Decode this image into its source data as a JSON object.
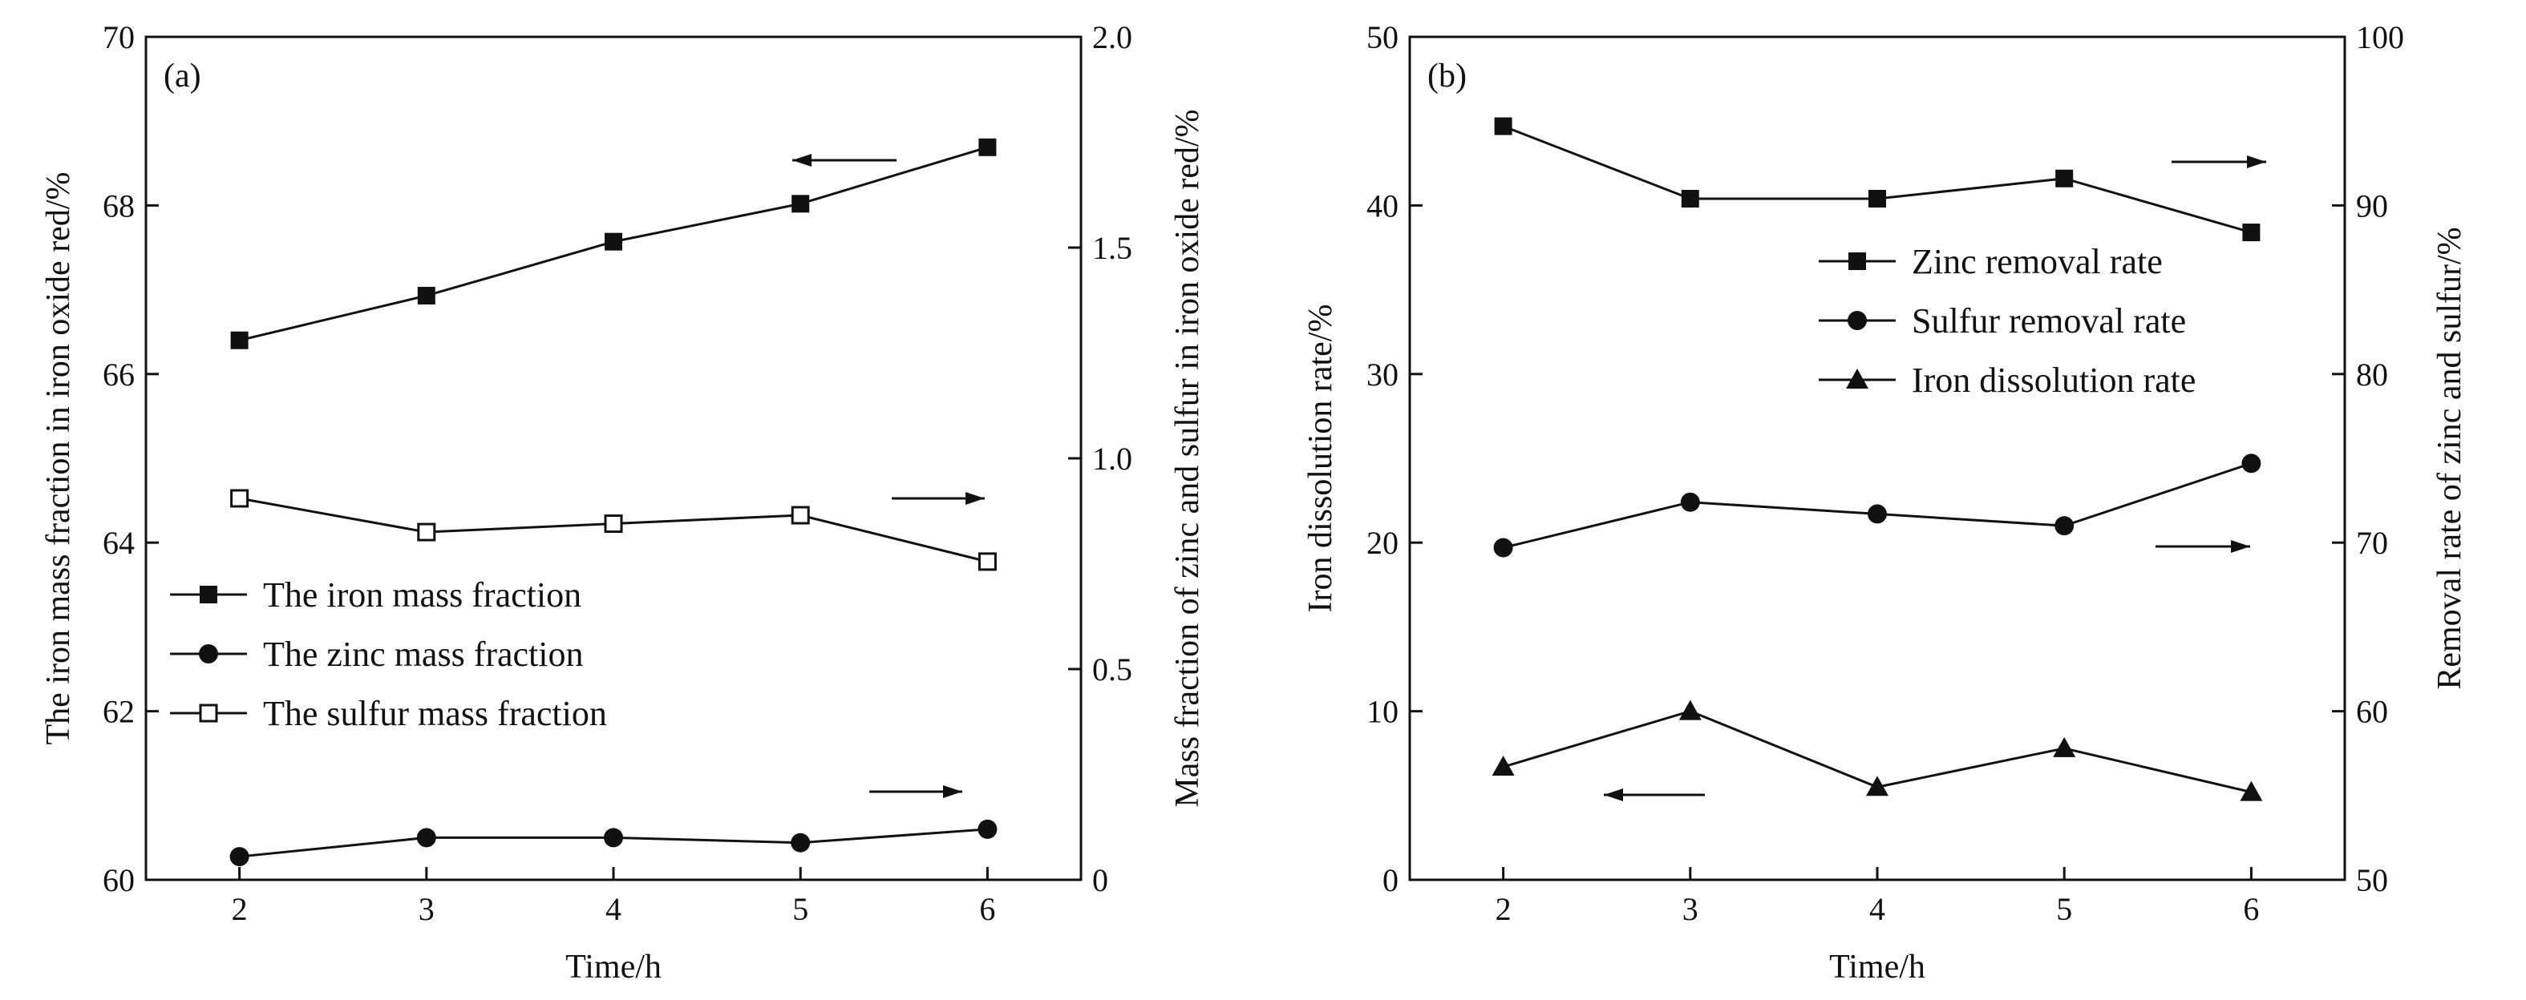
{
  "chart_data": [
    {
      "panel_label": "(a)",
      "type": "line",
      "xlabel": "Time/h",
      "ylabel_left": "The iron mass fraction in iron oxide red/%",
      "ylabel_right": "Mass fraction of zinc and sulfur in iron oxide red/%",
      "x": [
        2,
        3,
        4,
        5,
        6
      ],
      "xticks": [
        "2",
        "3",
        "4",
        "5",
        "6"
      ],
      "xlim": [
        1.5,
        6.5
      ],
      "ylim_left": [
        60,
        70
      ],
      "ylim_right": [
        0,
        2.0
      ],
      "yticks_left": [
        "60",
        "62",
        "64",
        "66",
        "68",
        "70"
      ],
      "yticks_right": [
        "0",
        "0.5",
        "1.0",
        "1.5",
        "2.0"
      ],
      "grid": false,
      "legend_position": "center-left",
      "series": [
        {
          "name": "The iron mass fraction",
          "axis": "left",
          "marker": "filled-square",
          "values": [
            66.4,
            66.93,
            67.57,
            68.02,
            68.69
          ]
        },
        {
          "name": "The zinc mass fraction",
          "axis": "right",
          "marker": "filled-circle",
          "values": [
            0.055,
            0.1,
            0.1,
            0.088,
            0.12
          ]
        },
        {
          "name": "The sulfur mass fraction",
          "axis": "right",
          "marker": "open-square",
          "values": [
            0.905,
            0.825,
            0.845,
            0.865,
            0.755
          ]
        }
      ]
    },
    {
      "panel_label": "(b)",
      "type": "line",
      "xlabel": "Time/h",
      "ylabel_left": "Iron dissolution rate/%",
      "ylabel_right": "Removal rate of zinc and sulfur/%",
      "x": [
        2,
        3,
        4,
        5,
        6
      ],
      "xticks": [
        "2",
        "3",
        "4",
        "5",
        "6"
      ],
      "xlim": [
        1.5,
        6.5
      ],
      "ylim_left": [
        0,
        50
      ],
      "ylim_right": [
        50,
        100
      ],
      "yticks_left": [
        "0",
        "10",
        "20",
        "30",
        "40",
        "50"
      ],
      "yticks_right": [
        "50",
        "60",
        "70",
        "80",
        "90",
        "100"
      ],
      "grid": false,
      "legend_position": "upper-right",
      "series": [
        {
          "name": "Zinc removal rate",
          "axis": "right",
          "marker": "filled-square",
          "values": [
            94.7,
            90.4,
            90.4,
            91.6,
            88.4
          ]
        },
        {
          "name": "Sulfur removal rate",
          "axis": "right",
          "marker": "filled-circle",
          "values": [
            69.7,
            72.4,
            71.7,
            71.0,
            74.7
          ]
        },
        {
          "name": "Iron dissolution rate",
          "axis": "left",
          "marker": "filled-triangle",
          "values": [
            6.7,
            10.0,
            5.5,
            7.8,
            5.2
          ]
        }
      ]
    }
  ]
}
